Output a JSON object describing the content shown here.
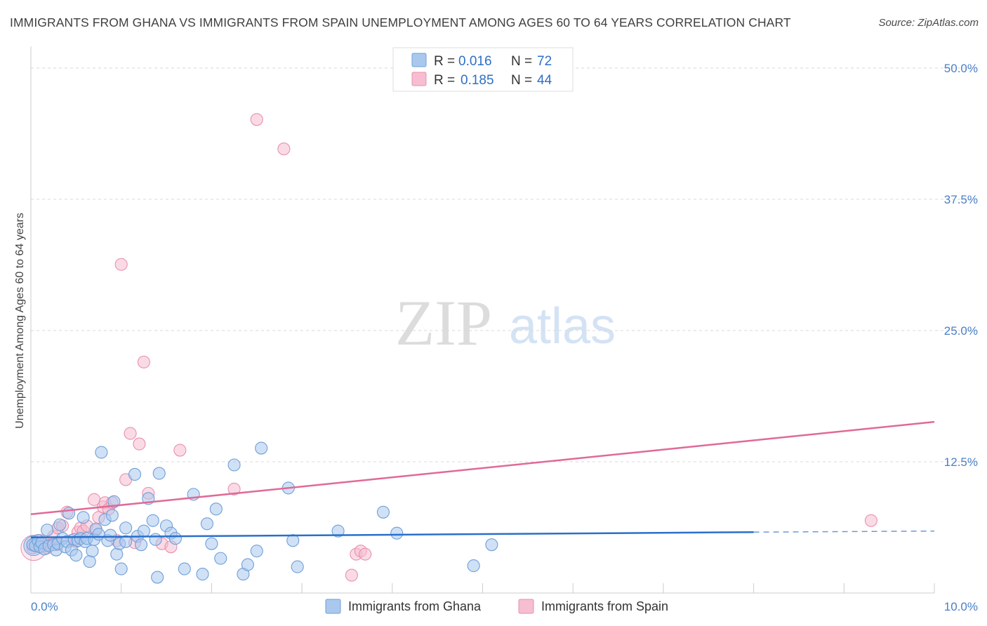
{
  "header": {
    "title": "IMMIGRANTS FROM GHANA VS IMMIGRANTS FROM SPAIN UNEMPLOYMENT AMONG AGES 60 TO 64 YEARS CORRELATION CHART",
    "source": "Source: ZipAtlas.com"
  },
  "watermark": {
    "zip": "ZIP",
    "atlas": "atlas"
  },
  "colors": {
    "ghana_fill": "#aac8ee",
    "ghana_stroke": "#6f9fd8",
    "ghana_line": "#2a6fcb",
    "spain_fill": "#f6bed0",
    "spain_stroke": "#e890ae",
    "spain_line": "#e06a97",
    "grid": "#d9d9d9",
    "tick_text": "#4a7fc7"
  },
  "chart_data": {
    "type": "scatter",
    "title": "IMMIGRANTS FROM GHANA VS IMMIGRANTS FROM SPAIN UNEMPLOYMENT AMONG AGES 60 TO 64 YEARS CORRELATION CHART",
    "xlabel": "",
    "ylabel": "Unemployment Among Ages 60 to 64 years",
    "xlim": [
      0,
      10
    ],
    "ylim": [
      0,
      52
    ],
    "x_tick_labels": [
      "0.0%",
      "10.0%"
    ],
    "y_ticks": [
      12.5,
      25.0,
      37.5,
      50.0
    ],
    "y_tick_labels": [
      "12.5%",
      "25.0%",
      "37.5%",
      "50.0%"
    ],
    "legend_position": "top-center",
    "legend": [
      {
        "name": "Immigrants from Ghana",
        "r_label": "R =",
        "r_value": "0.016",
        "n_label": "N =",
        "n_value": "72"
      },
      {
        "name": "Immigrants from Spain",
        "r_label": "R =",
        "r_value": "0.185",
        "n_label": "N =",
        "n_value": "44"
      }
    ],
    "series": [
      {
        "name": "Immigrants from Ghana",
        "trend": {
          "x": [
            0,
            8.0
          ],
          "y": [
            5.3,
            5.8
          ],
          "dashed_extension": {
            "x": [
              8.0,
              10.0
            ],
            "y": [
              5.8,
              5.9
            ]
          }
        },
        "points": [
          [
            0.02,
            4.6
          ],
          [
            0.05,
            4.5
          ],
          [
            0.08,
            5.0
          ],
          [
            0.1,
            4.4
          ],
          [
            0.12,
            4.8
          ],
          [
            0.15,
            4.2
          ],
          [
            0.18,
            6.0
          ],
          [
            0.2,
            4.5
          ],
          [
            0.25,
            4.6
          ],
          [
            0.28,
            4.1
          ],
          [
            0.3,
            4.7
          ],
          [
            0.32,
            6.5
          ],
          [
            0.35,
            5.2
          ],
          [
            0.38,
            4.4
          ],
          [
            0.4,
            4.9
          ],
          [
            0.42,
            7.6
          ],
          [
            0.45,
            4.1
          ],
          [
            0.48,
            5.1
          ],
          [
            0.5,
            3.6
          ],
          [
            0.52,
            5.0
          ],
          [
            0.55,
            5.2
          ],
          [
            0.58,
            7.2
          ],
          [
            0.6,
            4.9
          ],
          [
            0.62,
            5.2
          ],
          [
            0.65,
            3.0
          ],
          [
            0.68,
            4.0
          ],
          [
            0.7,
            5.1
          ],
          [
            0.72,
            6.1
          ],
          [
            0.75,
            5.6
          ],
          [
            0.78,
            13.4
          ],
          [
            0.82,
            7.0
          ],
          [
            0.85,
            5.0
          ],
          [
            0.88,
            5.5
          ],
          [
            0.9,
            7.4
          ],
          [
            0.92,
            8.7
          ],
          [
            0.95,
            3.7
          ],
          [
            0.98,
            4.7
          ],
          [
            1.0,
            2.3
          ],
          [
            1.05,
            6.2
          ],
          [
            1.05,
            4.9
          ],
          [
            1.15,
            11.3
          ],
          [
            1.18,
            5.4
          ],
          [
            1.22,
            4.6
          ],
          [
            1.25,
            5.9
          ],
          [
            1.3,
            9.0
          ],
          [
            1.35,
            6.9
          ],
          [
            1.38,
            5.1
          ],
          [
            1.4,
            1.5
          ],
          [
            1.42,
            11.4
          ],
          [
            1.5,
            6.4
          ],
          [
            1.55,
            5.7
          ],
          [
            1.6,
            5.2
          ],
          [
            1.7,
            2.3
          ],
          [
            1.8,
            9.4
          ],
          [
            1.9,
            1.8
          ],
          [
            1.95,
            6.6
          ],
          [
            2.0,
            4.7
          ],
          [
            2.05,
            8.0
          ],
          [
            2.1,
            3.3
          ],
          [
            2.25,
            12.2
          ],
          [
            2.35,
            1.8
          ],
          [
            2.4,
            2.7
          ],
          [
            2.5,
            4.0
          ],
          [
            2.55,
            13.8
          ],
          [
            2.85,
            10.0
          ],
          [
            2.9,
            5.0
          ],
          [
            2.95,
            2.5
          ],
          [
            3.4,
            5.9
          ],
          [
            3.9,
            7.7
          ],
          [
            4.05,
            5.7
          ],
          [
            4.9,
            2.6
          ],
          [
            5.1,
            4.6
          ]
        ]
      },
      {
        "name": "Immigrants from Spain",
        "trend": {
          "x": [
            0,
            10.0
          ],
          "y": [
            7.5,
            16.3
          ]
        },
        "points": [
          [
            0.02,
            4.3
          ],
          [
            0.05,
            4.8
          ],
          [
            0.08,
            4.6
          ],
          [
            0.1,
            5.0
          ],
          [
            0.15,
            4.5
          ],
          [
            0.18,
            4.3
          ],
          [
            0.22,
            4.6
          ],
          [
            0.25,
            5.4
          ],
          [
            0.28,
            4.6
          ],
          [
            0.3,
            6.2
          ],
          [
            0.35,
            6.4
          ],
          [
            0.4,
            7.7
          ],
          [
            0.45,
            5.0
          ],
          [
            0.5,
            4.9
          ],
          [
            0.52,
            5.8
          ],
          [
            0.55,
            6.2
          ],
          [
            0.58,
            5.9
          ],
          [
            0.62,
            6.4
          ],
          [
            0.7,
            8.9
          ],
          [
            0.72,
            6.0
          ],
          [
            0.75,
            7.2
          ],
          [
            0.8,
            8.2
          ],
          [
            0.82,
            8.6
          ],
          [
            0.86,
            8.0
          ],
          [
            0.9,
            8.6
          ],
          [
            0.95,
            5.0
          ],
          [
            1.0,
            31.3
          ],
          [
            1.05,
            10.8
          ],
          [
            1.1,
            15.2
          ],
          [
            1.15,
            4.8
          ],
          [
            1.2,
            14.2
          ],
          [
            1.25,
            22.0
          ],
          [
            1.3,
            9.5
          ],
          [
            1.45,
            4.7
          ],
          [
            1.55,
            4.4
          ],
          [
            1.65,
            13.6
          ],
          [
            2.25,
            9.9
          ],
          [
            2.5,
            45.1
          ],
          [
            2.8,
            42.3
          ],
          [
            3.55,
            1.7
          ],
          [
            3.6,
            3.7
          ],
          [
            3.65,
            4.0
          ],
          [
            3.7,
            3.7
          ],
          [
            9.3,
            6.9
          ]
        ]
      }
    ]
  }
}
